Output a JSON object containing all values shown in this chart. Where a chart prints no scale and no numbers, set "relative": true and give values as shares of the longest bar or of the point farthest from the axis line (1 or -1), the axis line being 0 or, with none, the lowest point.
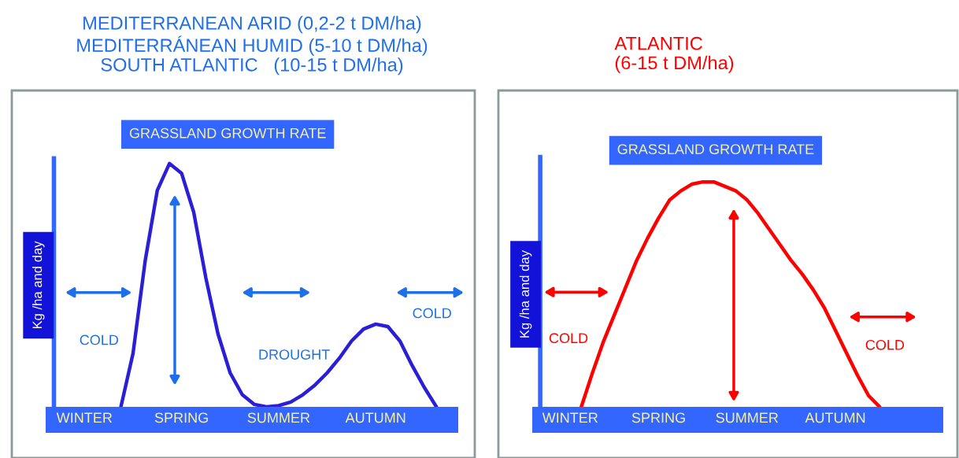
{
  "chart_data": [
    {
      "type": "line",
      "relative": true,
      "title": "MEDITERRANEAN ARID (0,2-2 t DM/ha)\nMEDITERRÁNEAN HUMID (5-10 t DM/ha)\nSOUTH ATLANTIC   (10-15 t DM/ha)",
      "subtitle": "GRASSLAND GROWTH RATE",
      "ylabel": "Kg /ha and day",
      "categories": [
        null,
        null,
        null,
        "WINTER",
        null,
        null,
        null,
        null,
        null,
        null,
        null,
        "SPRING",
        null,
        null,
        null,
        null,
        null,
        null,
        null,
        "SUMMER",
        null,
        null,
        null,
        null,
        null,
        null,
        null,
        "AUTUMN",
        null,
        null,
        null,
        null,
        null,
        null
      ],
      "series": [
        {
          "color": "#2a1fd6",
          "values": [
            null,
            null,
            null,
            null,
            null,
            null,
            0,
            0.22,
            0.6,
            0.89,
            1,
            0.96,
            0.8,
            0.53,
            0.3,
            0.14,
            0.05,
            0.01,
            0,
            0.005,
            0.02,
            0.05,
            0.09,
            0.14,
            0.2,
            0.27,
            0.32,
            0.34,
            0.33,
            0.27,
            0.17,
            0.08,
            0,
            null
          ]
        }
      ],
      "annotations": [
        "COLD",
        "DROUGHT",
        "COLD"
      ]
    },
    {
      "type": "line",
      "relative": true,
      "title": "ATLANTIC\n(6-15 t DM/ha)",
      "subtitle": "GRASSLAND GROWTH RATE",
      "ylabel": "Kg /ha and day",
      "categories": [
        null,
        null,
        null,
        "WINTER",
        null,
        null,
        null,
        null,
        null,
        null,
        null,
        "SPRING",
        null,
        null,
        null,
        null,
        null,
        null,
        null,
        "SUMMER",
        null,
        null,
        null,
        null,
        null,
        null,
        null,
        "AUTUMN",
        null,
        null,
        null,
        null,
        null,
        null,
        null,
        null,
        null
      ],
      "series": [
        {
          "color": "#ff0000",
          "values": [
            null,
            null,
            null,
            null,
            0,
            0.15,
            0.29,
            0.41,
            0.53,
            0.65,
            0.75,
            0.84,
            0.92,
            0.96,
            0.99,
            1,
            1,
            0.98,
            0.96,
            0.92,
            0.86,
            0.79,
            0.72,
            0.65,
            0.59,
            0.52,
            0.44,
            0.34,
            0.24,
            0.14,
            0.05,
            0,
            null,
            null,
            null,
            null,
            null
          ]
        }
      ],
      "annotations": [
        "COLD",
        "COLD"
      ]
    }
  ]
}
